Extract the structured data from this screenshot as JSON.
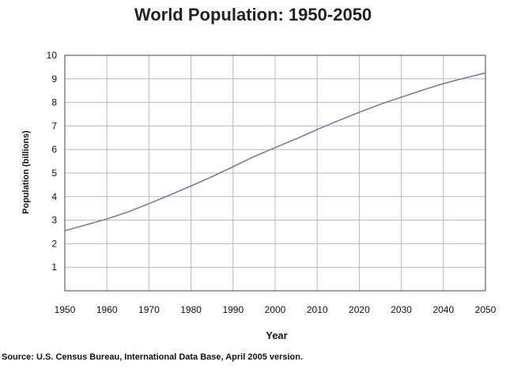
{
  "chart_data": {
    "type": "line",
    "title": "World Population: 1950-2050",
    "xlabel": "Year",
    "ylabel": "Population (billions)",
    "xlim": [
      1950,
      2050
    ],
    "ylim": [
      0,
      10
    ],
    "x_ticks": [
      "1950",
      "1960",
      "1970",
      "1980",
      "1990",
      "2000",
      "2010",
      "2020",
      "2030",
      "2040",
      "2050"
    ],
    "y_ticks": [
      "1",
      "2",
      "3",
      "4",
      "5",
      "6",
      "7",
      "8",
      "9",
      "10"
    ],
    "grid": true,
    "line_color": "#7b7ba8",
    "series": [
      {
        "x": [
          1950,
          1955,
          1960,
          1965,
          1970,
          1975,
          1980,
          1985,
          1990,
          1995,
          2000,
          2005,
          2010,
          2015,
          2020,
          2025,
          2030,
          2035,
          2040,
          2045,
          2050
        ],
        "values": [
          2.55,
          2.8,
          3.05,
          3.35,
          3.7,
          4.07,
          4.45,
          4.85,
          5.27,
          5.7,
          6.08,
          6.45,
          6.85,
          7.22,
          7.58,
          7.92,
          8.22,
          8.52,
          8.8,
          9.03,
          9.25
        ]
      }
    ],
    "source": "Source: U.S. Census Bureau, International Data Base, April 2005 version."
  }
}
